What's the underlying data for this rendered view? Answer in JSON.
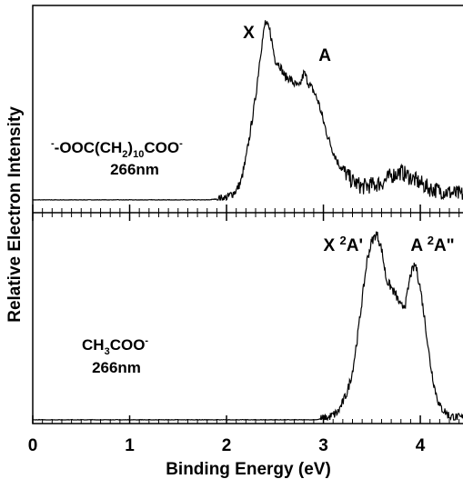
{
  "chart_data": {
    "type": "line",
    "ylabel": "Relative Electron Intensity",
    "xlim": [
      0,
      4.45
    ],
    "x_ticks": [
      "0",
      "1",
      "2",
      "3",
      "4"
    ],
    "grid": false,
    "panels": [
      {
        "position": "top",
        "species_main": "-OOC(CH",
        "species_sub": "2",
        "species_mid": ")",
        "species_sub2": "10",
        "species_end": "COO",
        "species_sup": "-",
        "species_pre_sup": "-",
        "wavelength": "266nm",
        "peak_labels": [
          {
            "label": "X",
            "sup": "",
            "suffix": "",
            "x": 2.17
          },
          {
            "label": "A",
            "sup": "",
            "suffix": "",
            "x": 2.95
          }
        ],
        "x": [
          0.0,
          1.8,
          2.0,
          2.1,
          2.15,
          2.2,
          2.25,
          2.3,
          2.35,
          2.4,
          2.45,
          2.5,
          2.55,
          2.6,
          2.65,
          2.7,
          2.75,
          2.8,
          2.85,
          2.9,
          2.95,
          3.0,
          3.05,
          3.1,
          3.15,
          3.2,
          3.3,
          3.4,
          3.5,
          3.6,
          3.7,
          3.8,
          3.9,
          4.0,
          4.1,
          4.2,
          4.3,
          4.4
        ],
        "values": [
          0.0,
          0.0,
          0.01,
          0.05,
          0.1,
          0.22,
          0.38,
          0.55,
          0.78,
          0.95,
          0.9,
          0.75,
          0.72,
          0.66,
          0.65,
          0.62,
          0.6,
          0.68,
          0.62,
          0.58,
          0.52,
          0.42,
          0.33,
          0.26,
          0.2,
          0.16,
          0.1,
          0.07,
          0.08,
          0.09,
          0.13,
          0.15,
          0.12,
          0.09,
          0.06,
          0.05,
          0.04,
          0.03
        ]
      },
      {
        "position": "bottom",
        "species_main": "CH",
        "species_sub": "3",
        "species_mid": "",
        "species_sub2": "",
        "species_end": "COO",
        "species_sup": "-",
        "species_pre_sup": "",
        "wavelength": "266nm",
        "peak_labels": [
          {
            "label": "X ",
            "sup": "2",
            "suffix": "A'",
            "x": 3.0
          },
          {
            "label": "A ",
            "sup": "2",
            "suffix": "A\"",
            "x": 3.9
          }
        ],
        "x": [
          0.0,
          2.9,
          3.05,
          3.15,
          3.2,
          3.25,
          3.3,
          3.35,
          3.4,
          3.45,
          3.5,
          3.55,
          3.6,
          3.65,
          3.7,
          3.75,
          3.8,
          3.85,
          3.9,
          3.95,
          4.0,
          4.05,
          4.1,
          4.15,
          4.2,
          4.3,
          4.4
        ],
        "values": [
          0.0,
          0.0,
          0.01,
          0.04,
          0.09,
          0.15,
          0.25,
          0.42,
          0.62,
          0.82,
          0.92,
          0.96,
          0.88,
          0.72,
          0.68,
          0.64,
          0.58,
          0.6,
          0.75,
          0.8,
          0.68,
          0.5,
          0.3,
          0.16,
          0.07,
          0.02,
          0.01
        ]
      }
    ],
    "xlabel": "Binding Energy (eV)"
  }
}
